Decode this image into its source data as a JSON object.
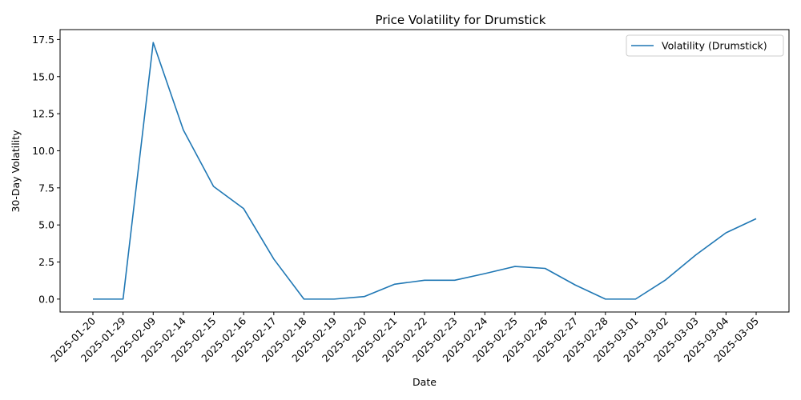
{
  "chart_data": {
    "type": "line",
    "title": "Price Volatility for Drumstick",
    "xlabel": "Date",
    "ylabel": "30-Day Volatility",
    "categories": [
      "2025-01-20",
      "2025-01-29",
      "2025-02-09",
      "2025-02-14",
      "2025-02-15",
      "2025-02-16",
      "2025-02-17",
      "2025-02-18",
      "2025-02-19",
      "2025-02-20",
      "2025-02-21",
      "2025-02-22",
      "2025-02-23",
      "2025-02-24",
      "2025-02-25",
      "2025-02-26",
      "2025-02-27",
      "2025-02-28",
      "2025-03-01",
      "2025-03-02",
      "2025-03-03",
      "2025-03-04",
      "2025-03-05"
    ],
    "series": [
      {
        "name": "Volatility (Drumstick)",
        "color": "#1f77b4",
        "values": [
          0.0,
          0.0,
          17.3,
          11.4,
          7.6,
          6.1,
          2.7,
          0.0,
          0.0,
          0.17,
          1.0,
          1.27,
          1.27,
          1.72,
          2.2,
          2.07,
          0.95,
          0.0,
          0.0,
          1.3,
          2.98,
          4.47,
          5.42
        ]
      }
    ],
    "yticks": [
      0.0,
      2.5,
      5.0,
      7.5,
      10.0,
      12.5,
      15.0,
      17.5
    ],
    "ytick_labels": [
      "0.0",
      "2.5",
      "5.0",
      "7.5",
      "10.0",
      "12.5",
      "15.0",
      "17.5"
    ],
    "ylim": [
      -0.87,
      18.17
    ],
    "grid": false,
    "legend": "top-right"
  }
}
